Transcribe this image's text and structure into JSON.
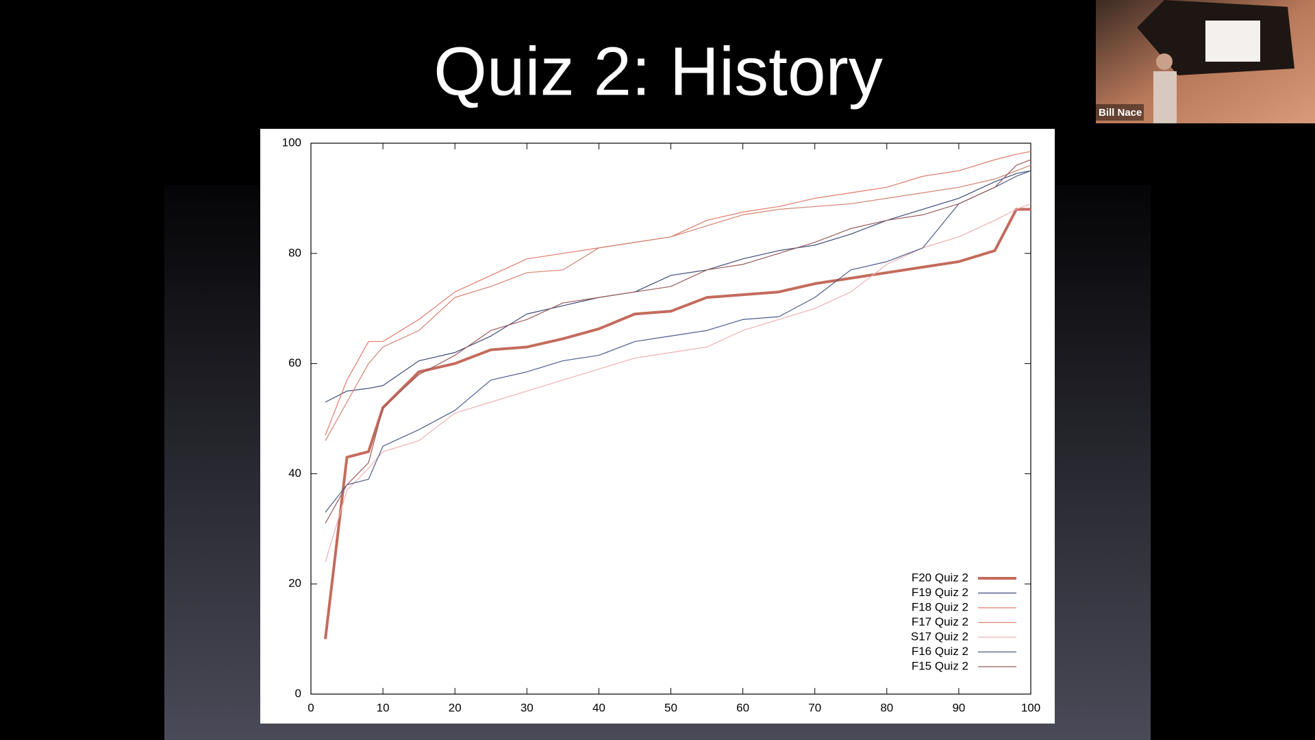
{
  "chart_data": {
    "type": "line",
    "title": "Quiz 2: History",
    "x": [
      2,
      5,
      8,
      10,
      15,
      20,
      25,
      30,
      35,
      40,
      45,
      50,
      55,
      60,
      65,
      70,
      75,
      80,
      85,
      90,
      95,
      98,
      100
    ],
    "xlim": [
      0,
      100
    ],
    "xticks": [
      0,
      10,
      20,
      30,
      40,
      50,
      60,
      70,
      80,
      90,
      100
    ],
    "ylim": [
      0,
      100
    ],
    "yticks": [
      0,
      20,
      40,
      60,
      80,
      100
    ],
    "grid": false,
    "legend": "lower right",
    "series": [
      {
        "name": "F20 Quiz 2",
        "color": "#c46b5c",
        "width": 4,
        "values": [
          10,
          43,
          44,
          52,
          58.5,
          60,
          62.5,
          63,
          64.5,
          66.3,
          69,
          69.5,
          72,
          72.5,
          73,
          74.5,
          75.5,
          76.5,
          77.5,
          78.5,
          80.5,
          88,
          88
        ]
      },
      {
        "name": "F19 Quiz 2",
        "color": "#3c4a7a",
        "width": 1.2,
        "values": [
          53,
          55,
          55.5,
          56,
          60.5,
          62,
          65,
          69,
          70.5,
          72,
          73,
          76,
          77,
          79,
          80.5,
          81.5,
          83.5,
          86,
          88,
          90,
          93,
          94.5,
          95
        ]
      },
      {
        "name": "F18 Quiz 2",
        "color": "#e07a6a",
        "width": 1.2,
        "values": [
          47,
          57,
          64,
          64,
          68,
          73,
          76,
          79,
          80,
          81,
          82,
          83,
          86,
          87.5,
          88.5,
          90,
          91,
          92,
          94,
          95,
          97,
          98,
          98.5
        ]
      },
      {
        "name": "F17 Quiz 2",
        "color": "#d4826e",
        "width": 1.2,
        "values": [
          46,
          53,
          60,
          63,
          66,
          72,
          74,
          76.5,
          77,
          81,
          82,
          83,
          85,
          87,
          88,
          88.5,
          89,
          90,
          91,
          92,
          93.5,
          95,
          96
        ]
      },
      {
        "name": "S17 Quiz 2",
        "color": "#f0b0b0",
        "width": 1.2,
        "values": [
          24,
          37,
          41,
          44,
          46,
          51,
          53,
          55,
          57,
          59,
          61,
          62,
          63,
          66,
          68,
          70,
          73,
          78,
          81,
          83,
          86,
          88,
          89
        ]
      },
      {
        "name": "F16 Quiz 2",
        "color": "#4a5a8a",
        "width": 1.2,
        "values": [
          33,
          38,
          39,
          45,
          48,
          51.5,
          57,
          58.5,
          60.5,
          61.5,
          64,
          65,
          66,
          68,
          68.5,
          72,
          77,
          78.5,
          81,
          89,
          92,
          94,
          95
        ]
      },
      {
        "name": "F15 Quiz 2",
        "color": "#9c5a5a",
        "width": 1.2,
        "values": [
          31,
          38,
          42,
          52,
          58,
          61.5,
          66,
          68,
          71,
          72,
          73,
          74,
          77,
          78,
          80,
          82,
          84.5,
          86,
          87,
          89,
          92,
          96,
          97
        ]
      }
    ]
  },
  "video": {
    "name": "Bill Nace"
  }
}
